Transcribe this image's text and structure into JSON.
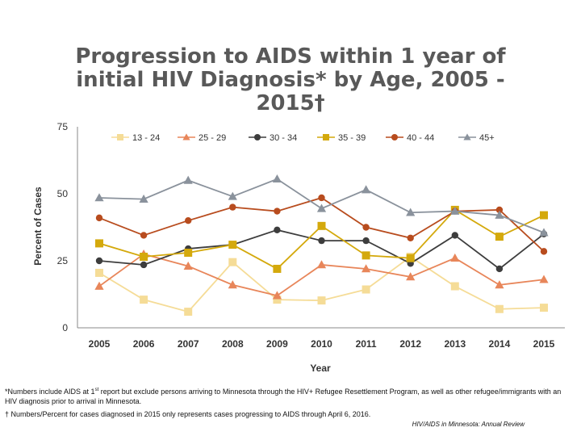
{
  "title_line1": "Progression to AIDS within 1 year of",
  "title_line2": "initial HIV Diagnosis* by Age, 2005 -",
  "title_line3": "2015†",
  "footnote1_a": "*Numbers include AIDS at 1",
  "footnote1_sup": "st",
  "footnote1_b": " report but exclude persons arriving to Minnesota through the HIV+ Refugee Resettlement Program, as well as other refugee/immigrants with an HIV diagnosis prior to arrival in Minnesota.",
  "footnote2": "† Numbers/Percent for cases diagnosed in 2015 only represents cases progressing to AIDS through April 6, 2016.",
  "source": "HIV/AIDS in Minnesota: Annual Review",
  "chart_data": {
    "type": "line",
    "title": "Progression to AIDS within 1 year of initial HIV Diagnosis* by Age, 2005 - 2015†",
    "xlabel": "Year",
    "ylabel": "Percent of Cases",
    "ylim": [
      0,
      75
    ],
    "yticks": [
      0,
      25,
      50,
      75
    ],
    "grid": false,
    "legend_position": "top",
    "categories": [
      "2005",
      "2006",
      "2007",
      "2008",
      "2009",
      "2010",
      "2011",
      "2012",
      "2013",
      "2014",
      "2015"
    ],
    "series": [
      {
        "name": "13 - 24",
        "color": "#f5dc97",
        "marker": "square",
        "values": [
          20.5,
          10.5,
          6,
          24.5,
          10.5,
          10.2,
          14.3,
          26.5,
          15.5,
          7,
          7.5
        ]
      },
      {
        "name": "25 - 29",
        "color": "#e8865a",
        "marker": "triangle",
        "values": [
          15.5,
          27.5,
          23,
          16,
          12,
          23.5,
          22,
          19,
          26,
          16,
          18
        ]
      },
      {
        "name": "30 - 34",
        "color": "#3d3d3d",
        "marker": "circle",
        "values": [
          25,
          23.5,
          29.5,
          31,
          36.5,
          32.5,
          32.5,
          24,
          34.5,
          22,
          35
        ]
      },
      {
        "name": "35 - 39",
        "color": "#d4a90c",
        "marker": "square",
        "values": [
          31.5,
          26.5,
          28,
          31,
          22,
          38,
          27,
          26,
          44,
          34,
          42
        ]
      },
      {
        "name": "40 - 44",
        "color": "#b84c1e",
        "marker": "circle",
        "values": [
          41,
          34.5,
          40,
          45,
          43.5,
          48.5,
          37.5,
          33.5,
          43.5,
          44,
          28.5
        ]
      },
      {
        "name": "45+",
        "color": "#8a929c",
        "marker": "triangle",
        "values": [
          48.5,
          48,
          55,
          49,
          55.5,
          44.5,
          51.5,
          43,
          43.5,
          42,
          35.5
        ]
      }
    ]
  }
}
